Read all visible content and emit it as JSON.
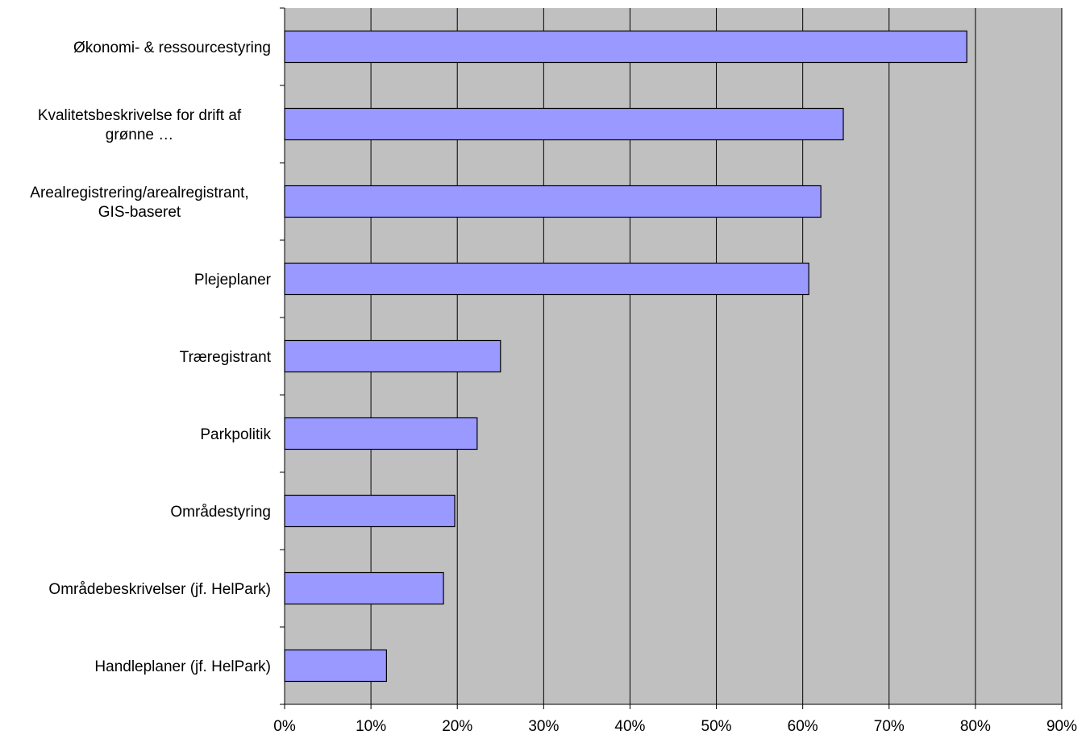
{
  "chart_data": {
    "type": "bar",
    "orientation": "horizontal",
    "categories": [
      [
        "Økonomi- & ressourcestyring"
      ],
      [
        "Kvalitetsbeskrivelse for drift af",
        "grønne …"
      ],
      [
        "Arealregistrering/arealregistrant,",
        "GIS-baseret"
      ],
      [
        "Plejeplaner"
      ],
      [
        "Træregistrant"
      ],
      [
        "Parkpolitik"
      ],
      [
        "Områdestyring"
      ],
      [
        "Områdebeskrivelser (jf. HelPark)"
      ],
      [
        "Handleplaner (jf. HelPark)"
      ]
    ],
    "values": [
      79,
      64.7,
      62.1,
      60.7,
      25,
      22.3,
      19.7,
      18.4,
      11.8
    ],
    "xlim": [
      0,
      90
    ],
    "xticks": [
      "0%",
      "10%",
      "20%",
      "30%",
      "40%",
      "50%",
      "60%",
      "70%",
      "80%",
      "90%"
    ],
    "title": "",
    "xlabel": "",
    "ylabel": "",
    "grid": "vertical",
    "legend": "none",
    "colors": {
      "plot_background": "#c0c0c0",
      "bar_fill": "#9999ff",
      "bar_stroke": "#000000",
      "grid": "#000000"
    }
  }
}
